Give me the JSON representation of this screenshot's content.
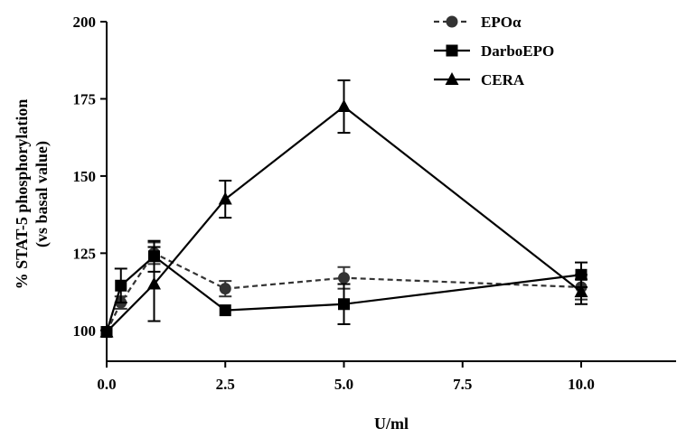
{
  "chart_data": {
    "type": "line",
    "xlabel": "U/ml",
    "ylabel_line1": "% STAT-5 phosphorylation",
    "ylabel_line2": "(vs basal value)",
    "xlim": [
      0,
      12
    ],
    "ylim": [
      90,
      200
    ],
    "x_ticks": [
      0,
      2.5,
      5,
      7.5,
      10
    ],
    "x_tick_labels": [
      "0.0",
      "2.5",
      "5.0",
      "7.5",
      "10.0"
    ],
    "y_ticks": [
      100,
      125,
      150,
      175,
      200
    ],
    "y_tick_labels": [
      "100",
      "125",
      "150",
      "175",
      "200"
    ],
    "grid": false,
    "legend_position": "top-right",
    "series": [
      {
        "name": "EPOα",
        "marker": "circle",
        "line": "dashed",
        "color": "#333333",
        "points": [
          {
            "x": 0,
            "y": 99.5,
            "err": 0
          },
          {
            "x": 0.3,
            "y": 109,
            "err": 2
          },
          {
            "x": 1,
            "y": 125,
            "err": 3.5
          },
          {
            "x": 2.5,
            "y": 113.5,
            "err": 2.5
          },
          {
            "x": 5,
            "y": 117,
            "err": 3.5
          },
          {
            "x": 10,
            "y": 114,
            "err": 4
          }
        ]
      },
      {
        "name": "DarboEPO",
        "marker": "square",
        "line": "solid",
        "color": "#000000",
        "points": [
          {
            "x": 0,
            "y": 99.5,
            "err": 0
          },
          {
            "x": 0.3,
            "y": 114.5,
            "err": 5.5
          },
          {
            "x": 1,
            "y": 124,
            "err": 5
          },
          {
            "x": 2.5,
            "y": 106.5,
            "err": 0
          },
          {
            "x": 5,
            "y": 108.5,
            "err": 6.5
          },
          {
            "x": 10,
            "y": 118,
            "err": 4
          }
        ]
      },
      {
        "name": "CERA",
        "marker": "triangle",
        "line": "solid",
        "color": "#000000",
        "points": [
          {
            "x": 0,
            "y": 99.5,
            "err": 0
          },
          {
            "x": 1,
            "y": 115,
            "err": 12
          },
          {
            "x": 2.5,
            "y": 142.5,
            "err": 6
          },
          {
            "x": 5,
            "y": 172.5,
            "err": 8.5
          },
          {
            "x": 10,
            "y": 112.5,
            "err": 4
          }
        ]
      }
    ]
  }
}
